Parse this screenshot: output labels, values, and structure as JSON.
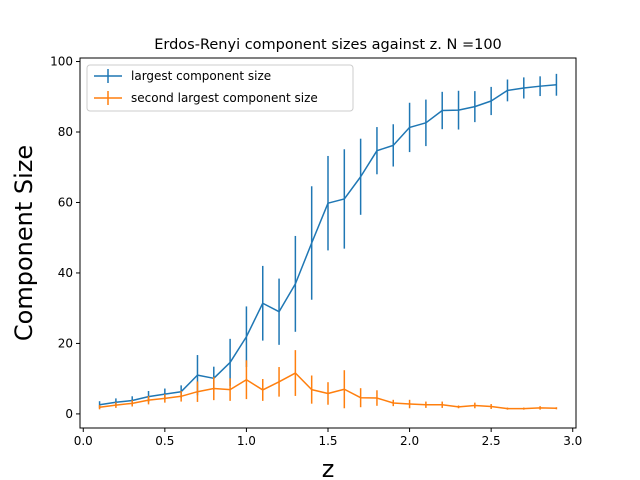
{
  "chart_data": {
    "type": "line",
    "title": "Erdos-Renyi component sizes against z. N =100",
    "xlabel": "z",
    "ylabel": "Component Size",
    "xlim": [
      -0.02,
      3.02
    ],
    "ylim": [
      -4,
      101
    ],
    "xticks": [
      0.0,
      0.5,
      1.0,
      1.5,
      2.0,
      2.5,
      3.0
    ],
    "xtick_labels": [
      "0.0",
      "0.5",
      "1.0",
      "1.5",
      "2.0",
      "2.5",
      "3.0"
    ],
    "yticks": [
      0,
      20,
      40,
      60,
      80,
      100
    ],
    "ytick_labels": [
      "0",
      "20",
      "40",
      "60",
      "80",
      "100"
    ],
    "grid": false,
    "legend_position": "top-left",
    "x": [
      0.1,
      0.2,
      0.3,
      0.4,
      0.5,
      0.6,
      0.7,
      0.8,
      0.9,
      1.0,
      1.1,
      1.2,
      1.3,
      1.4,
      1.5,
      1.6,
      1.7,
      1.8,
      1.9,
      2.0,
      2.1,
      2.2,
      2.3,
      2.4,
      2.5,
      2.6,
      2.7,
      2.8,
      2.9
    ],
    "series": [
      {
        "name": "largest component size",
        "color": "#1f77b4",
        "values": [
          2.6,
          3.3,
          3.8,
          4.9,
          5.6,
          6.3,
          11.0,
          10.1,
          14.6,
          21.9,
          31.4,
          29.0,
          36.9,
          48.5,
          59.8,
          61.0,
          67.3,
          74.7,
          76.2,
          81.3,
          82.6,
          86.1,
          86.2,
          87.2,
          88.8,
          91.8,
          92.5,
          93.0,
          93.4
        ],
        "errors": [
          1.0,
          1.1,
          1.2,
          1.6,
          1.6,
          1.8,
          5.7,
          3.3,
          6.7,
          8.6,
          10.6,
          9.4,
          13.6,
          16.1,
          13.4,
          14.1,
          10.8,
          6.7,
          6.0,
          7.0,
          6.6,
          5.3,
          5.5,
          4.4,
          4.0,
          3.1,
          3.0,
          2.8,
          3.1
        ]
      },
      {
        "name": "second largest component size",
        "color": "#ff7f0e",
        "values": [
          1.9,
          2.5,
          3.0,
          3.9,
          4.4,
          5.0,
          6.3,
          7.2,
          6.9,
          9.7,
          6.8,
          9.1,
          11.6,
          6.9,
          5.8,
          7.0,
          4.6,
          4.5,
          3.1,
          2.8,
          2.6,
          2.6,
          2.0,
          2.4,
          2.1,
          1.5,
          1.5,
          1.7,
          1.6
        ],
        "errors": [
          0.6,
          0.8,
          0.9,
          1.2,
          1.2,
          1.5,
          2.9,
          3.3,
          3.2,
          5.5,
          3.1,
          4.2,
          6.5,
          4.0,
          3.2,
          5.4,
          2.7,
          2.2,
          0.9,
          1.2,
          0.9,
          0.9,
          0.4,
          0.8,
          0.7,
          0.3,
          0.3,
          0.5,
          0.3
        ]
      }
    ]
  }
}
